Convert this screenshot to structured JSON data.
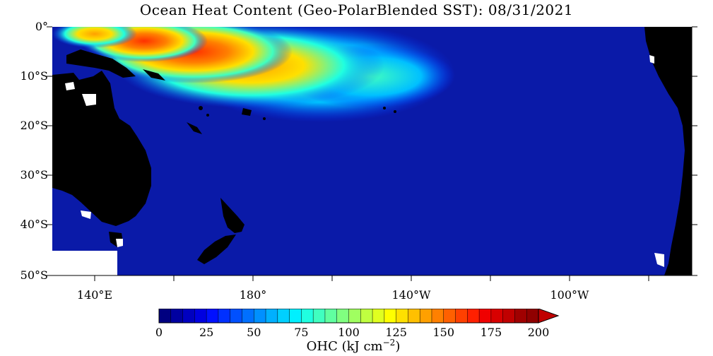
{
  "title": "Ocean Heat Content (Geo-PolarBlended SST): 08/31/2021",
  "map": {
    "latitude_labels": [
      "0°",
      "10°S",
      "20°S",
      "30°S",
      "40°S",
      "50°S"
    ],
    "longitude_labels": [
      "140°E",
      "180°",
      "140°W",
      "100°W"
    ],
    "colors": {
      "ocean_low": "#0a1aa8",
      "land": "#000000",
      "missing": "#ffffff"
    },
    "regions": [
      "Australia",
      "New Zealand",
      "Papua New Guinea",
      "South America",
      "Pacific Ocean"
    ]
  },
  "colorbar": {
    "tick_labels": [
      "0",
      "25",
      "50",
      "75",
      "100",
      "125",
      "150",
      "175",
      "200"
    ],
    "unit_label": "OHC (kJ cm",
    "unit_exponent": "−2",
    "unit_close": ")",
    "colors": [
      "#000080",
      "#0000a0",
      "#0000c0",
      "#0000e0",
      "#0010ff",
      "#0030ff",
      "#0050ff",
      "#0070ff",
      "#0090ff",
      "#00b0ff",
      "#00d0ff",
      "#00f0ff",
      "#20ffe0",
      "#40ffc0",
      "#60ffa0",
      "#80ff80",
      "#a0ff60",
      "#c0ff40",
      "#e0ff20",
      "#ffff00",
      "#ffe000",
      "#ffc000",
      "#ffa000",
      "#ff8000",
      "#ff6000",
      "#ff4000",
      "#ff2000",
      "#f00000",
      "#d80000",
      "#c00000",
      "#a00000",
      "#900000"
    ]
  }
}
